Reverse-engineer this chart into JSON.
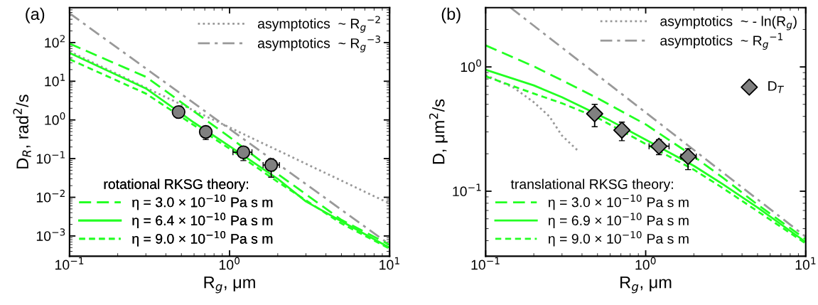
{
  "chart_data": [
    {
      "type": "line",
      "title": "(a)",
      "xlabel": "R$_{g}$, μm",
      "ylabel": "D$_{R}$, rad$^{2}$/s",
      "log": "xy",
      "legend": "top right",
      "legend_title": "rotational RKSG theory:",
      "xlim": [
        0.1,
        10
      ],
      "ylim": [
        0.0003,
        800
      ],
      "xticks": [
        {
          "value": 0.1,
          "label": "10$^{−1}$"
        },
        {
          "value": 1,
          "label": "10$^{0}$"
        },
        {
          "value": 10,
          "label": "10$^{1}$"
        }
      ],
      "yticks": [
        {
          "value": 0.001,
          "label": "10$^{−3}$"
        },
        {
          "value": 0.01,
          "label": "10$^{−2}$"
        },
        {
          "value": 0.1,
          "label": "10$^{−1}$"
        },
        {
          "value": 1,
          "label": "10$^{0}$"
        },
        {
          "value": 10,
          "label": "10$^{1}$"
        },
        {
          "value": 100,
          "label": "10$^{2}$"
        }
      ],
      "series": [
        {
          "name": "asymptotics  ~ R$_{g}$$^{−2}$",
          "line_style": "dotted",
          "color": "#999999",
          "x": [
            0.1,
            10
          ],
          "values": [
            59,
            0.0069
          ]
        },
        {
          "name": "asymptotics  ~ R$_{g}$$^{−3}$",
          "line_style": "dashdot",
          "color": "#999999",
          "x": [
            0.1,
            10
          ],
          "values": [
            570,
            0.0006
          ]
        },
        {
          "name": "η = 3.0 × 10$^{−10}$ Pa s m",
          "line_style": "dashed",
          "color": "#22ff22",
          "x": [
            0.1,
            0.3,
            1,
            2,
            5,
            10
          ],
          "values": [
            94,
            13,
            0.36,
            0.04,
            0.0026,
            0.00059
          ]
        },
        {
          "name": "η = 6.4 × 10$^{−10}$ Pa s m",
          "line_style": "solid",
          "color": "#22ff22",
          "x": [
            0.1,
            0.3,
            0.6,
            1,
            2,
            3,
            5,
            10
          ],
          "values": [
            54,
            6.5,
            0.85,
            0.21,
            0.03,
            0.0078,
            0.0024,
            0.0005
          ]
        },
        {
          "name": "η = 9.0 × 10$^{−10}$ Pa s m",
          "line_style": "short dashed",
          "color": "#22ff22",
          "x": [
            0.1,
            0.3,
            1,
            2,
            5,
            10
          ],
          "values": [
            37,
            4.8,
            0.18,
            0.025,
            0.0021,
            0.00047
          ]
        },
        {
          "type": "scatter",
          "marker": "circle",
          "color": "#808080",
          "x": [
            0.48,
            0.71,
            1.22,
            1.82
          ],
          "values": [
            1.6,
            0.49,
            0.146,
            0.068
          ],
          "errors": [
            [
              1.3,
              2.0
            ],
            [
              0.31,
              0.6
            ],
            [
              0.089,
              0.19
            ],
            [
              0.033,
              0.1
            ]
          ],
          "xerrors": [
            null,
            null,
            [
              1.05,
              1.38
            ],
            [
              1.62,
              2.05
            ]
          ]
        }
      ]
    },
    {
      "type": "line",
      "title": "(b)",
      "xlabel": "R$_{g}$, μm",
      "ylabel": "D, μm$^{2}$/s",
      "log": "xy",
      "legend": "top right",
      "legend_title": "translational RKSG theory:",
      "xlim": [
        0.1,
        10
      ],
      "ylim": [
        0.03,
        3
      ],
      "xticks": [
        {
          "value": 0.1,
          "label": "10$^{−1}$"
        },
        {
          "value": 1,
          "label": "10$^{0}$"
        },
        {
          "value": 10,
          "label": "10$^{1}$"
        }
      ],
      "yticks": [
        {
          "value": 0.1,
          "label": "10$^{−1}$"
        },
        {
          "value": 1,
          "label": "10$^{0}$"
        }
      ],
      "series": [
        {
          "name": "asymptotics  ~ - ln(R$_{g}$)",
          "line_style": "dotted",
          "color": "#999999",
          "x": [
            0.1,
            0.15,
            0.2,
            0.25,
            0.3,
            0.38
          ],
          "values": [
            0.86,
            0.68,
            0.52,
            0.4,
            0.28,
            0.21
          ]
        },
        {
          "name": "asymptotics  ~ R$_{g}$$^{−1}$",
          "line_style": "dashdot",
          "color": "#999999",
          "x": [
            0.143,
            10
          ],
          "values": [
            3.0,
            0.043
          ]
        },
        {
          "name": "η = 3.0 × 10$^{−10}$ Pa s m",
          "line_style": "dashed",
          "color": "#22ff22",
          "x": [
            0.1,
            0.2,
            0.3,
            0.5,
            1,
            2,
            3,
            5,
            10
          ],
          "values": [
            1.49,
            1.01,
            0.78,
            0.56,
            0.345,
            0.19,
            0.13,
            0.078,
            0.041
          ]
        },
        {
          "name": "η = 6.9 × 10$^{−10}$ Pa s m",
          "line_style": "solid",
          "color": "#22ff22",
          "x": [
            0.1,
            0.2,
            0.3,
            0.6,
            1,
            2,
            3,
            5,
            10
          ],
          "values": [
            0.95,
            0.71,
            0.57,
            0.37,
            0.26,
            0.16,
            0.115,
            0.074,
            0.039
          ]
        },
        {
          "name": "η = 9.0 × 10$^{−10}$ Pa s m",
          "line_style": "short dashed",
          "color": "#22ff22",
          "x": [
            0.1,
            0.2,
            0.3,
            0.5,
            1,
            2,
            3,
            5,
            10
          ],
          "values": [
            0.84,
            0.61,
            0.51,
            0.39,
            0.24,
            0.149,
            0.107,
            0.069,
            0.038
          ]
        },
        {
          "name": "D$_{T}$",
          "type": "scatter",
          "marker": "diamond",
          "color": "#808080",
          "x": [
            0.48,
            0.71,
            1.21,
            1.84
          ],
          "values": [
            0.42,
            0.31,
            0.23,
            0.19
          ],
          "errors": [
            [
              0.33,
              0.5
            ],
            [
              0.255,
              0.36
            ],
            [
              0.197,
              0.26
            ],
            [
              0.149,
              0.22
            ]
          ],
          "xerrors": [
            null,
            null,
            [
              1.05,
              1.4
            ],
            [
              1.66,
              2.07
            ]
          ]
        }
      ]
    }
  ]
}
